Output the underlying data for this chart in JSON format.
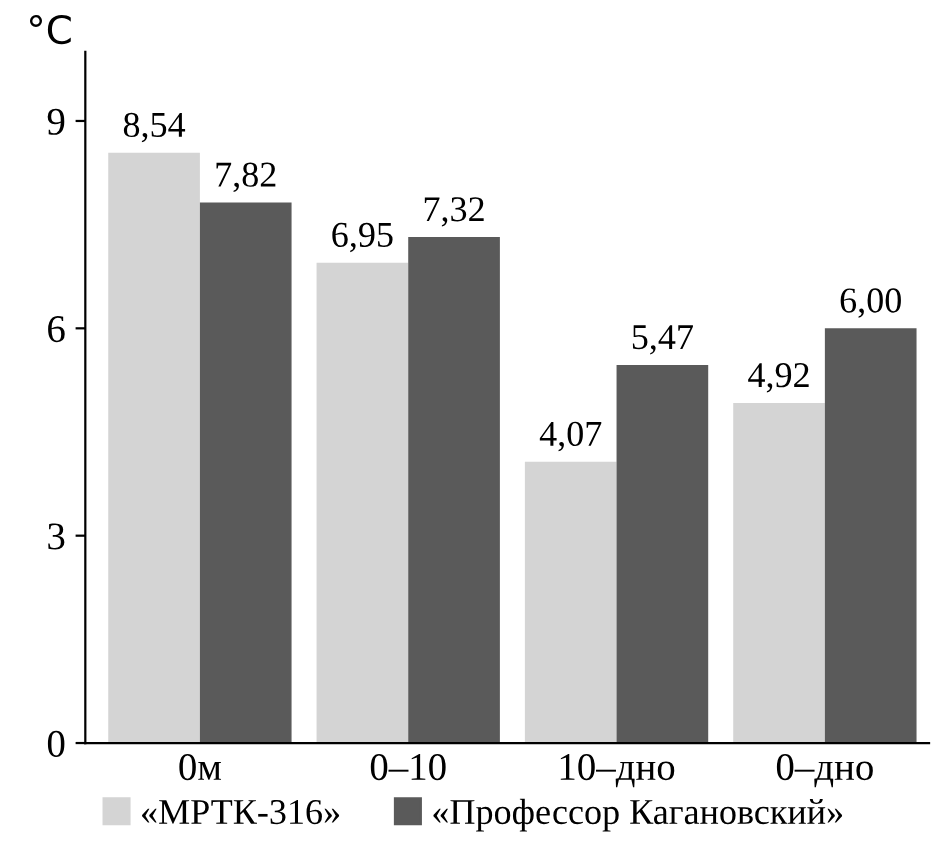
{
  "chart_data": {
    "type": "bar",
    "ylabel": "°C",
    "categories": [
      "0м",
      "0–10",
      "10–дно",
      "0–дно"
    ],
    "series": [
      {
        "name": "«МРТК-316»",
        "color": "#d4d4d4",
        "values": [
          8.54,
          6.95,
          4.07,
          4.92
        ],
        "value_labels": [
          "8,54",
          "6,95",
          "4,07",
          "4,92"
        ]
      },
      {
        "name": "«Профессор Кагановский»",
        "color": "#5a5a5a",
        "values": [
          7.82,
          7.32,
          5.47,
          6.0
        ],
        "value_labels": [
          "7,82",
          "7,32",
          "5,47",
          "6,00"
        ]
      }
    ],
    "ylim": [
      0,
      10
    ],
    "yticks": [
      0,
      3,
      6,
      9
    ],
    "grid": false,
    "legend": "bottom"
  }
}
